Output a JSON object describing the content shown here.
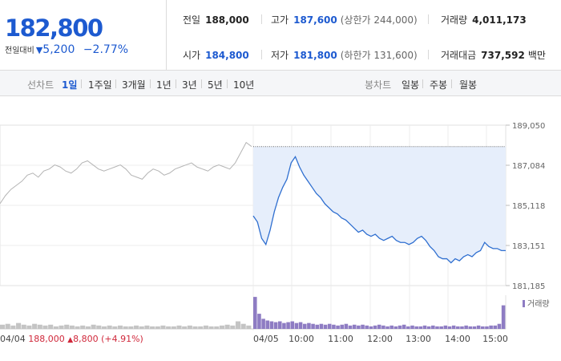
{
  "header": {
    "price": "182,800",
    "change_label": "전일대비",
    "change_arrow": "▼",
    "change_value": "5,200",
    "change_percent": "−2.77%"
  },
  "stats": {
    "prev_close": {
      "label": "전일",
      "value": "188,000"
    },
    "high": {
      "label": "고가",
      "value": "187,600",
      "sub": "(상한가 244,000)"
    },
    "volume": {
      "label": "거래량",
      "value": "4,011,173"
    },
    "open": {
      "label": "시가",
      "value": "184,800"
    },
    "low": {
      "label": "저가",
      "value": "181,800",
      "sub": "(하한가 131,600)"
    },
    "amount": {
      "label": "거래대금",
      "value": "737,592",
      "unit": "백만"
    }
  },
  "tabs": {
    "line_label": "선차트",
    "line_items": [
      "1일",
      "1주일",
      "3개월",
      "1년",
      "3년",
      "5년",
      "10년"
    ],
    "line_active": "1일",
    "candle_label": "봉차트",
    "candle_items": [
      "일봉",
      "주봉",
      "월봉"
    ]
  },
  "prev_day": {
    "date": "04/04",
    "close": "188,000",
    "arrow": "▲",
    "change": "8,800",
    "percent": "(+4.91%)"
  },
  "colors": {
    "price_blue": "#1d5ad0",
    "line_blue": "#2f6fd0",
    "fill_blue": "#e6eefb",
    "prev_gray": "#b4b4b4",
    "up_red": "#d0283b",
    "volume_purple": "#8e7cc3"
  },
  "chart_data": {
    "type": "line",
    "ylim": [
      181185,
      189050
    ],
    "yticks": [
      "189,050",
      "187,084",
      "185,118",
      "183,151",
      "181,185"
    ],
    "x_labels": [
      "04/04",
      "04/05",
      "10:00",
      "11:00",
      "12:00",
      "13:00",
      "14:00",
      "15:00"
    ],
    "reference_line": 188000,
    "legend": "거래량",
    "series": [
      {
        "values": [
          185200,
          185600,
          185900,
          186100,
          186300,
          186600,
          186700,
          186500,
          186800,
          186900,
          187100,
          187000,
          186800,
          186700,
          186900,
          187200,
          187300,
          187100,
          186900,
          186800,
          186900,
          187000,
          187100,
          186900,
          186600,
          186500,
          186400,
          186700,
          186900,
          186800,
          186600,
          186700,
          186900,
          187000,
          187100,
          187200,
          187000,
          186900,
          186800,
          187000,
          187100,
          187000,
          186900,
          187200,
          187700,
          188200,
          188000
        ]
      },
      {
        "values": [
          184600,
          184300,
          183500,
          183200,
          183900,
          184800,
          185500,
          186000,
          186400,
          187200,
          187500,
          187000,
          186600,
          186300,
          186000,
          185700,
          185500,
          185200,
          185000,
          184800,
          184700,
          184500,
          184400,
          184200,
          184000,
          183800,
          183900,
          183700,
          183600,
          183700,
          183500,
          183400,
          183500,
          183600,
          183400,
          183300,
          183300,
          183200,
          183300,
          183500,
          183600,
          183400,
          183100,
          182900,
          182600,
          182500,
          182500,
          182300,
          182500,
          182400,
          182600,
          182700,
          182600,
          182800,
          182900,
          183300,
          183100,
          183000,
          183000,
          182900,
          182900
        ]
      }
    ],
    "volume": {
      "prev_day": [
        5,
        6,
        4,
        7,
        5,
        4,
        6,
        5,
        4,
        5,
        3,
        4,
        5,
        4,
        3,
        4,
        3,
        5,
        4,
        3,
        4,
        3,
        4,
        3,
        3,
        4,
        3,
        4,
        3,
        3,
        4,
        3,
        3,
        4,
        3,
        4,
        3,
        3,
        4,
        3,
        3,
        4,
        5,
        4,
        9,
        6,
        4
      ],
      "today": [
        38,
        18,
        12,
        10,
        9,
        8,
        9,
        7,
        8,
        9,
        7,
        8,
        6,
        7,
        6,
        5,
        6,
        5,
        6,
        5,
        4,
        5,
        6,
        4,
        5,
        4,
        5,
        4,
        3,
        4,
        5,
        4,
        3,
        4,
        3,
        4,
        5,
        3,
        4,
        3,
        3,
        4,
        3,
        4,
        3,
        3,
        4,
        3,
        4,
        3,
        3,
        4,
        3,
        3,
        4,
        3,
        3,
        4,
        4,
        6,
        28
      ]
    }
  }
}
